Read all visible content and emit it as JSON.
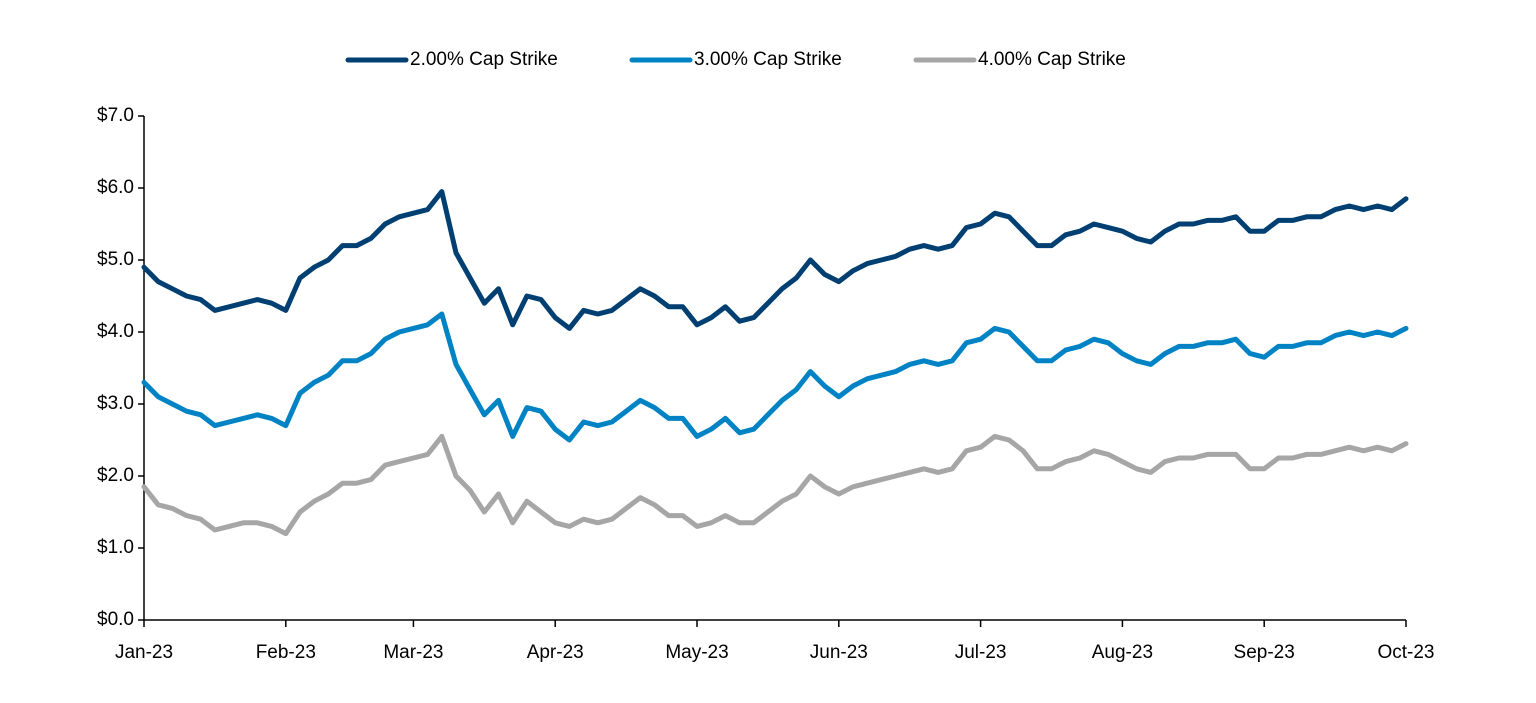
{
  "chart_data": {
    "type": "line",
    "categories": [
      "Jan-23",
      null,
      null,
      null,
      null,
      null,
      null,
      null,
      null,
      null,
      "Feb-23",
      null,
      null,
      null,
      null,
      null,
      null,
      null,
      null,
      "Mar-23",
      null,
      null,
      null,
      null,
      null,
      null,
      null,
      null,
      null,
      "Apr-23",
      null,
      null,
      null,
      null,
      null,
      null,
      null,
      null,
      null,
      "May-23",
      null,
      null,
      null,
      null,
      null,
      null,
      null,
      null,
      null,
      "Jun-23",
      null,
      null,
      null,
      null,
      null,
      null,
      null,
      null,
      null,
      "Jul-23",
      null,
      null,
      null,
      null,
      null,
      null,
      null,
      null,
      null,
      "Aug-23",
      null,
      null,
      null,
      null,
      null,
      null,
      null,
      null,
      null,
      "Sep-23",
      null,
      null,
      null,
      null,
      null,
      null,
      null,
      null,
      null,
      "Oct-23"
    ],
    "series": [
      {
        "name": "2.00% Cap Strike",
        "color": "#003f72",
        "values": [
          4.9,
          4.7,
          4.6,
          4.5,
          4.45,
          4.3,
          4.35,
          4.4,
          4.45,
          4.4,
          4.3,
          4.75,
          4.9,
          5.0,
          5.2,
          5.2,
          5.3,
          5.5,
          5.6,
          5.65,
          5.7,
          5.95,
          5.1,
          4.75,
          4.4,
          4.6,
          4.1,
          4.5,
          4.45,
          4.2,
          4.05,
          4.3,
          4.25,
          4.3,
          4.45,
          4.6,
          4.5,
          4.35,
          4.35,
          4.1,
          4.2,
          4.35,
          4.15,
          4.2,
          4.4,
          4.6,
          4.75,
          5.0,
          4.8,
          4.7,
          4.85,
          4.95,
          5.0,
          5.05,
          5.15,
          5.2,
          5.15,
          5.2,
          5.45,
          5.5,
          5.65,
          5.6,
          5.4,
          5.2,
          5.2,
          5.35,
          5.4,
          5.5,
          5.45,
          5.4,
          5.3,
          5.25,
          5.4,
          5.5,
          5.5,
          5.55,
          5.55,
          5.6,
          5.4,
          5.4,
          5.55,
          5.55,
          5.6,
          5.6,
          5.7,
          5.75,
          5.7,
          5.75,
          5.7,
          5.85
        ]
      },
      {
        "name": "3.00% Cap Strike",
        "color": "#0083c4",
        "values": [
          3.3,
          3.1,
          3.0,
          2.9,
          2.85,
          2.7,
          2.75,
          2.8,
          2.85,
          2.8,
          2.7,
          3.15,
          3.3,
          3.4,
          3.6,
          3.6,
          3.7,
          3.9,
          4.0,
          4.05,
          4.1,
          4.25,
          3.55,
          3.2,
          2.85,
          3.05,
          2.55,
          2.95,
          2.9,
          2.65,
          2.5,
          2.75,
          2.7,
          2.75,
          2.9,
          3.05,
          2.95,
          2.8,
          2.8,
          2.55,
          2.65,
          2.8,
          2.6,
          2.65,
          2.85,
          3.05,
          3.2,
          3.45,
          3.25,
          3.1,
          3.25,
          3.35,
          3.4,
          3.45,
          3.55,
          3.6,
          3.55,
          3.6,
          3.85,
          3.9,
          4.05,
          4.0,
          3.8,
          3.6,
          3.6,
          3.75,
          3.8,
          3.9,
          3.85,
          3.7,
          3.6,
          3.55,
          3.7,
          3.8,
          3.8,
          3.85,
          3.85,
          3.9,
          3.7,
          3.65,
          3.8,
          3.8,
          3.85,
          3.85,
          3.95,
          4.0,
          3.95,
          4.0,
          3.95,
          4.05
        ]
      },
      {
        "name": "4.00% Cap Strike",
        "color": "#a6a6a6",
        "values": [
          1.85,
          1.6,
          1.55,
          1.45,
          1.4,
          1.25,
          1.3,
          1.35,
          1.35,
          1.3,
          1.2,
          1.5,
          1.65,
          1.75,
          1.9,
          1.9,
          1.95,
          2.15,
          2.2,
          2.25,
          2.3,
          2.55,
          2.0,
          1.8,
          1.5,
          1.75,
          1.35,
          1.65,
          1.5,
          1.35,
          1.3,
          1.4,
          1.35,
          1.4,
          1.55,
          1.7,
          1.6,
          1.45,
          1.45,
          1.3,
          1.35,
          1.45,
          1.35,
          1.35,
          1.5,
          1.65,
          1.75,
          2.0,
          1.85,
          1.75,
          1.85,
          1.9,
          1.95,
          2.0,
          2.05,
          2.1,
          2.05,
          2.1,
          2.35,
          2.4,
          2.55,
          2.5,
          2.35,
          2.1,
          2.1,
          2.2,
          2.25,
          2.35,
          2.3,
          2.2,
          2.1,
          2.05,
          2.2,
          2.25,
          2.25,
          2.3,
          2.3,
          2.3,
          2.1,
          2.1,
          2.25,
          2.25,
          2.3,
          2.3,
          2.35,
          2.4,
          2.35,
          2.4,
          2.35,
          2.45
        ]
      }
    ],
    "ylim": [
      0,
      7
    ],
    "yticks": [
      {
        "value": 0,
        "label": "$0.0"
      },
      {
        "value": 1,
        "label": "$1.0"
      },
      {
        "value": 2,
        "label": "$2.0"
      },
      {
        "value": 3,
        "label": "$3.0"
      },
      {
        "value": 4,
        "label": "$4.0"
      },
      {
        "value": 5,
        "label": "$5.0"
      },
      {
        "value": 6,
        "label": "$6.0"
      },
      {
        "value": 7,
        "label": "$7.0"
      }
    ],
    "grid": false,
    "legend": "top"
  }
}
